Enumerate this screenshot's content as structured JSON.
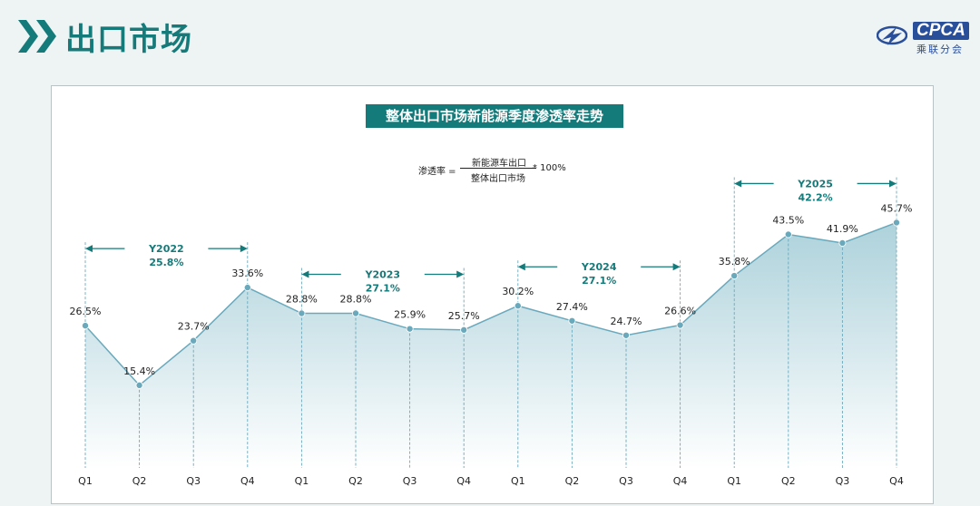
{
  "header": {
    "title": "出口市场",
    "logo_text": "CPCA",
    "logo_sub": "乘联分会"
  },
  "formula": {
    "lhs": "渗透率 =",
    "numerator": "新能源车出口",
    "denominator": "整体出口市场",
    "rhs": "* 100%"
  },
  "colors": {
    "accent": "#157a7a",
    "line": "#6aa9bc",
    "marker": "#6aa9bc",
    "area_top": "#9fcad5",
    "area_bottom": "#ffffff",
    "background": "#eef3f3"
  },
  "chart_data": {
    "type": "area",
    "title": "整体出口市场新能源季度渗透率走势",
    "categories": [
      "Q1",
      "Q2",
      "Q3",
      "Q4",
      "Q1",
      "Q2",
      "Q3",
      "Q4",
      "Q1",
      "Q2",
      "Q3",
      "Q4",
      "Q1",
      "Q2",
      "Q3",
      "Q4"
    ],
    "values": [
      26.5,
      15.4,
      23.7,
      33.6,
      28.8,
      28.8,
      25.9,
      25.7,
      30.2,
      27.4,
      24.7,
      26.6,
      35.8,
      43.5,
      41.9,
      45.7
    ],
    "labels": [
      "26.5%",
      "15.4%",
      "23.7%",
      "33.6%",
      "28.8%",
      "28.8%",
      "25.9%",
      "25.7%",
      "30.2%",
      "27.4%",
      "24.7%",
      "26.6%",
      "35.8%",
      "43.5%",
      "41.9%",
      "45.7%"
    ],
    "ylim": [
      0,
      60
    ],
    "grid": false,
    "year_groups": [
      {
        "year": "Y2022",
        "value": "25.8%",
        "start": 0,
        "end": 3
      },
      {
        "year": "Y2023",
        "value": "27.1%",
        "start": 4,
        "end": 7
      },
      {
        "year": "Y2024",
        "value": "27.1%",
        "start": 8,
        "end": 11
      },
      {
        "year": "Y2025",
        "value": "42.2%",
        "start": 12,
        "end": 15
      }
    ]
  }
}
